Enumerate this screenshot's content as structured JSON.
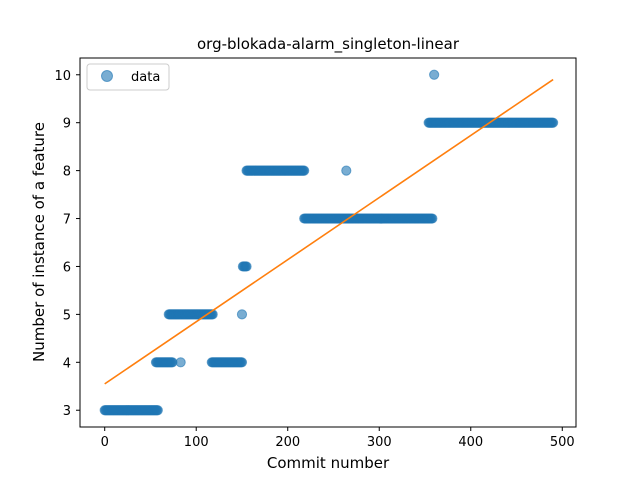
{
  "chart_data": {
    "type": "scatter",
    "title": "org-blokada-alarm_singleton-linear",
    "xlabel": "Commit number",
    "ylabel": "Number of instance of a feature",
    "xlim": [
      -27,
      515
    ],
    "ylim": [
      2.65,
      10.35
    ],
    "xticks": [
      0,
      100,
      200,
      300,
      400,
      500
    ],
    "yticks": [
      3,
      4,
      5,
      6,
      7,
      8,
      9,
      10
    ],
    "grid": false,
    "legend": {
      "position": "top-left",
      "entries": [
        "data"
      ]
    },
    "colors": {
      "data": "#1f77b4",
      "fit": "#ff7f0e"
    },
    "segments": [
      {
        "x_start": 0,
        "x_end": 58,
        "y": 3
      },
      {
        "x_start": 56,
        "x_end": 74,
        "y": 4
      },
      {
        "x_start": 70,
        "x_end": 118,
        "y": 5
      },
      {
        "x_start": 117,
        "x_end": 150,
        "y": 4
      },
      {
        "x_start": 151,
        "x_end": 155,
        "y": 6
      },
      {
        "x_start": 155,
        "x_end": 218,
        "y": 8
      },
      {
        "x_start": 218,
        "x_end": 358,
        "y": 7
      },
      {
        "x_start": 354,
        "x_end": 490,
        "y": 9
      }
    ],
    "outliers": [
      {
        "x": 83,
        "y": 4
      },
      {
        "x": 150,
        "y": 5
      },
      {
        "x": 264,
        "y": 8
      },
      {
        "x": 360,
        "y": 10
      }
    ],
    "series": [
      {
        "name": "data",
        "kind": "points"
      },
      {
        "kind": "line",
        "x": [
          0,
          490
        ],
        "y": [
          3.55,
          9.9
        ]
      }
    ]
  }
}
